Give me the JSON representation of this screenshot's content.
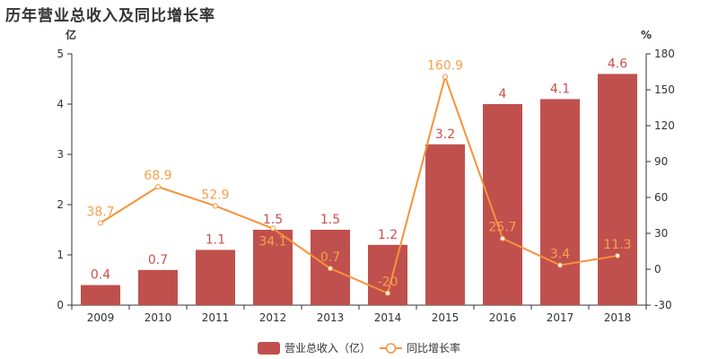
{
  "title": "历年营业总收入及同比增长率",
  "chart_data": {
    "type": "bar+line",
    "title": "历年营业总收入及同比增长率",
    "categories": [
      "2009",
      "2010",
      "2011",
      "2012",
      "2013",
      "2014",
      "2015",
      "2016",
      "2017",
      "2018"
    ],
    "series": [
      {
        "name": "营业总收入（亿）",
        "type": "bar",
        "axis": "left",
        "values": [
          0.4,
          0.7,
          1.1,
          1.5,
          1.5,
          1.2,
          3.2,
          4,
          4.1,
          4.6
        ],
        "color": "#c0504d"
      },
      {
        "name": "同比增长率",
        "type": "line",
        "axis": "right",
        "values": [
          38.7,
          68.9,
          52.9,
          34.1,
          0.7,
          -20,
          160.9,
          25.7,
          3.4,
          11.3
        ],
        "color": "#f7923a"
      }
    ],
    "left_axis": {
      "label": "亿",
      "ylim": [
        0,
        5
      ],
      "ticks": [
        0,
        1,
        2,
        3,
        4,
        5
      ]
    },
    "right_axis": {
      "label": "%",
      "ylim": [
        -30,
        180
      ],
      "ticks": [
        -30,
        0,
        30,
        60,
        90,
        120,
        150,
        180
      ]
    },
    "grid": false,
    "legend": "bottom"
  }
}
